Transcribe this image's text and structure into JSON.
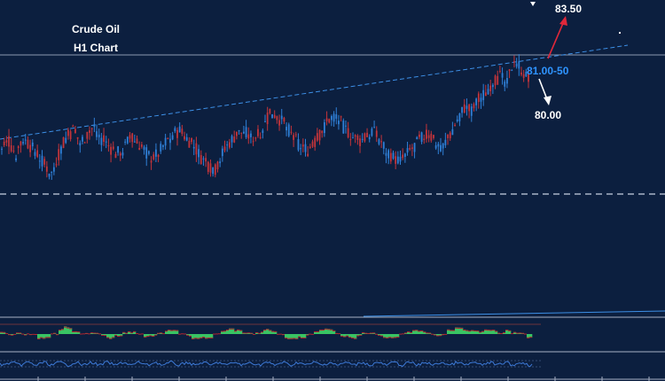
{
  "colors": {
    "background": "#0c1f3f",
    "up_candle": "#2f7fd6",
    "down_candle": "#c4343a",
    "trendline": "#3d8fe6",
    "level_line": "#8b98b0",
    "support_dashed": "#c9d2e2",
    "target_up": "#e0283a",
    "target_down": "#ffffff",
    "resistance_label": "#2f94ff",
    "histogram_fill": "#39c463",
    "histogram_line": "#b3232e",
    "rsi_line": "#3d7ad8"
  },
  "chart_data": [
    {
      "type": "candlestick",
      "title": "Crude Oil",
      "subtitle": "H1 Chart",
      "annotations": {
        "upside_target": "83.50",
        "resistance_zone": "81.00-50",
        "downside_target": "80.00"
      },
      "series": [
        {
          "close": [
            79.9,
            80.1,
            79.8,
            80.2,
            80.0,
            79.8,
            79.5,
            79.3,
            79.8,
            80.2,
            80.4,
            80.1,
            80.3,
            80.5,
            80.2,
            80.0,
            79.8,
            79.9,
            80.2,
            80.1,
            79.9,
            79.7,
            79.8,
            80.1,
            80.3,
            80.4,
            80.2,
            80.0,
            79.7,
            79.5,
            79.4,
            79.8,
            80.1,
            80.3,
            80.4,
            80.2,
            80.3,
            80.6,
            80.9,
            80.7,
            80.5,
            80.2,
            80.0,
            79.9,
            80.1,
            80.4,
            80.7,
            80.8,
            80.5,
            80.3,
            80.1,
            80.2,
            80.4,
            80.2,
            79.9,
            79.7,
            79.6,
            79.8,
            80.0,
            80.2,
            80.3,
            80.1,
            80.0,
            80.3,
            80.7,
            81.0,
            80.9,
            81.2,
            81.4,
            81.7,
            81.8,
            81.6,
            82.3,
            82.0,
            81.7
          ]
        }
      ]
    },
    {
      "type": "histogram",
      "description_series": "momentum"
    },
    {
      "type": "line",
      "description_series": "oscillator"
    }
  ]
}
